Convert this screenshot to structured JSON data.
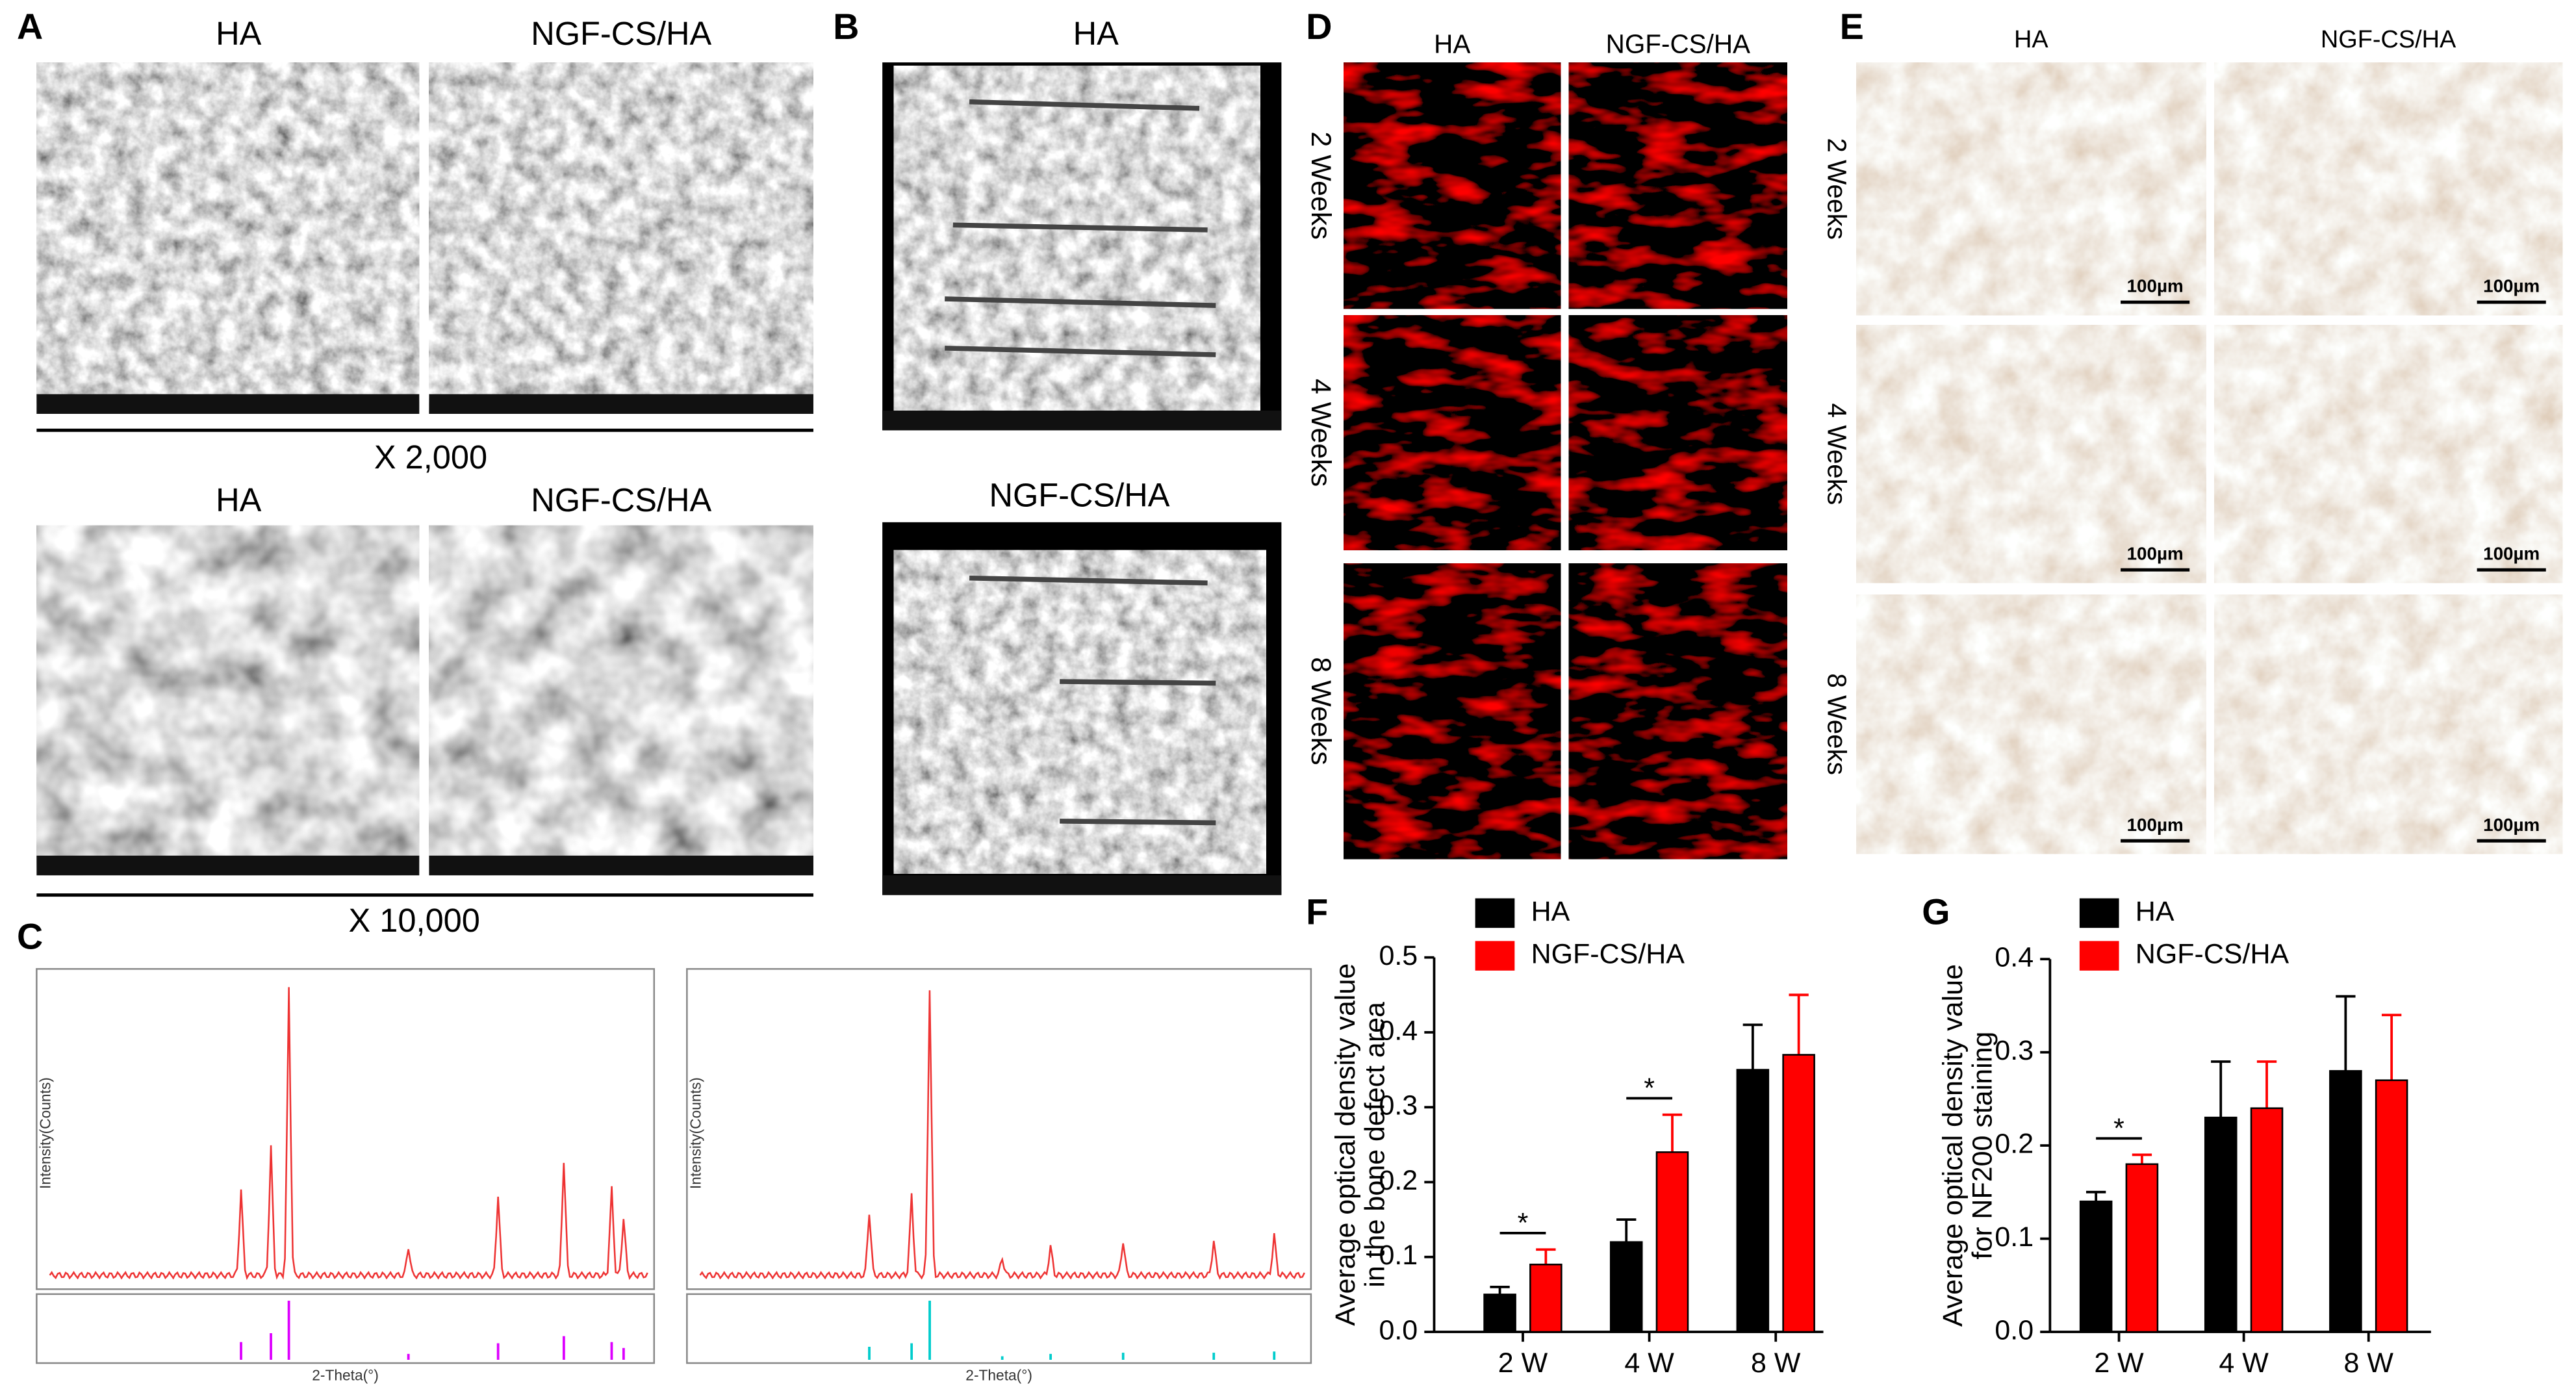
{
  "panels": {
    "A": {
      "label": "A",
      "titles": [
        "HA",
        "NGF-CS/HA",
        "HA",
        "NGF-CS/HA"
      ],
      "magnifications": [
        "X 2,000",
        "X 10,000"
      ]
    },
    "B": {
      "label": "B",
      "titles": [
        "HA",
        "NGF-CS/HA"
      ]
    },
    "C": {
      "label": "C",
      "x_axis_label": "2-Theta(°)",
      "y_axis_label": "Intensity(Counts)"
    },
    "D": {
      "label": "D",
      "columns": [
        "HA",
        "NGF-CS/HA"
      ],
      "rows": [
        "2 Weeks",
        "4 Weeks",
        "8 Weeks"
      ]
    },
    "E": {
      "label": "E",
      "columns": [
        "HA",
        "NGF-CS/HA"
      ],
      "rows": [
        "2 Weeks",
        "4 Weeks",
        "8 Weeks"
      ],
      "scale_bar": "100µm"
    }
  },
  "chart_data": [
    {
      "type": "bar",
      "panel_label": "F",
      "ylabel": [
        "Average optical density value",
        "in the bone defect area"
      ],
      "categories": [
        "2 W",
        "4 W",
        "8 W"
      ],
      "series": [
        {
          "name": "HA",
          "color": "#000000",
          "values": [
            0.05,
            0.12,
            0.35
          ],
          "errors": [
            0.01,
            0.03,
            0.06
          ]
        },
        {
          "name": "NGF-CS/HA",
          "color": "#ff0000",
          "values": [
            0.09,
            0.24,
            0.37
          ],
          "errors": [
            0.02,
            0.05,
            0.08
          ]
        }
      ],
      "ylim": [
        0,
        0.5
      ],
      "yticks": [
        {
          "value": 0,
          "label": "0.0"
        },
        0.1,
        0.2,
        0.3,
        0.4,
        0.5
      ],
      "annotations": [
        "*",
        "*"
      ],
      "legend": "upper left"
    },
    {
      "type": "bar",
      "panel_label": "G",
      "ylabel": [
        "Average optical density value",
        "for NF200 staining"
      ],
      "categories": [
        "2 W",
        "4 W",
        "8 W"
      ],
      "series": [
        {
          "name": "HA",
          "color": "#000000",
          "values": [
            0.14,
            0.23,
            0.28
          ],
          "errors": [
            0.01,
            0.06,
            0.08
          ]
        },
        {
          "name": "NGF-CS/HA",
          "color": "#ff0000",
          "values": [
            0.18,
            0.24,
            0.27
          ],
          "errors": [
            0.01,
            0.05,
            0.07
          ]
        }
      ],
      "ylim": [
        0,
        0.4
      ],
      "yticks": [
        {
          "value": 0,
          "label": "0.0"
        },
        0.1,
        0.2,
        0.3,
        0.4
      ],
      "annotations": [
        "*"
      ],
      "legend": "upper left"
    }
  ]
}
